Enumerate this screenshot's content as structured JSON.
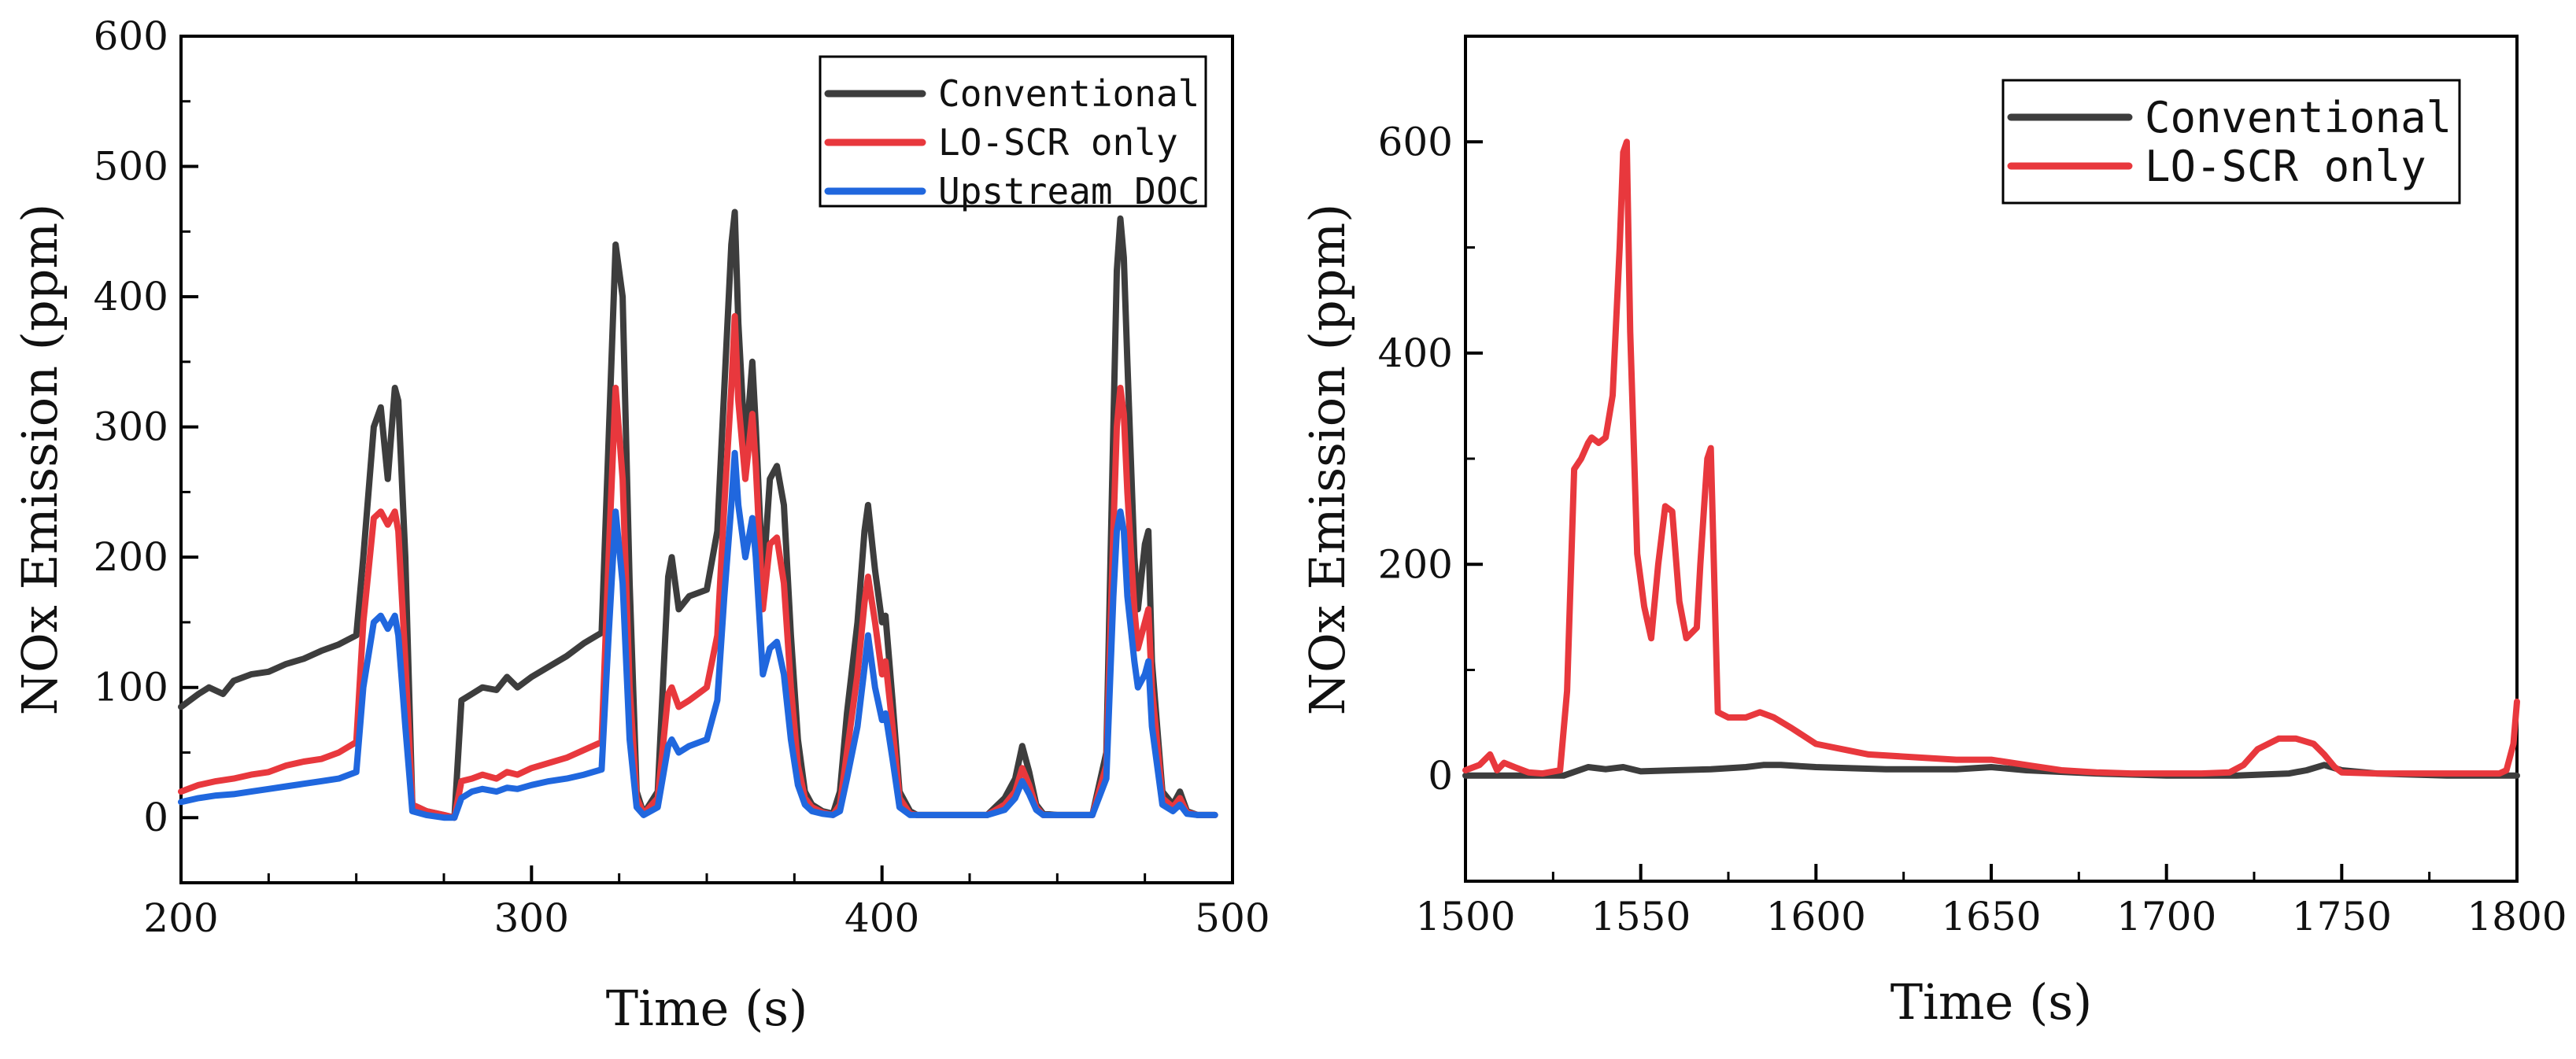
{
  "chart_data": [
    {
      "type": "line",
      "xlabel": "Time (s)",
      "ylabel": "NOx Emission (ppm)",
      "xlim": [
        200,
        500
      ],
      "ylim": [
        -50,
        600
      ],
      "xticks": [
        200,
        300,
        400,
        500
      ],
      "yticks": [
        0,
        100,
        200,
        300,
        400,
        500,
        600
      ],
      "legend_position": "top-right",
      "grid": false,
      "series": [
        {
          "name": "Conventional",
          "color": "#3d3d3d",
          "x": [
            200,
            205,
            208,
            212,
            215,
            220,
            225,
            230,
            235,
            240,
            245,
            250,
            252,
            255,
            257,
            259,
            261,
            262,
            264,
            266,
            270,
            275,
            278,
            280,
            283,
            286,
            290,
            293,
            296,
            300,
            305,
            310,
            315,
            320,
            322,
            324,
            326,
            328,
            330,
            332,
            336,
            339,
            340,
            342,
            345,
            350,
            353,
            355,
            357,
            358,
            359,
            361,
            363,
            364,
            366,
            368,
            370,
            372,
            374,
            376,
            378,
            380,
            383,
            386,
            388,
            390,
            393,
            395,
            396,
            398,
            400,
            401,
            403,
            405,
            408,
            410,
            415,
            420,
            425,
            430,
            435,
            438,
            440,
            442,
            444,
            446,
            450,
            455,
            460,
            464,
            466,
            467,
            468,
            469,
            470,
            472,
            473,
            475,
            476,
            477,
            480,
            483,
            485,
            487,
            490,
            495
          ],
          "y": [
            85,
            95,
            100,
            95,
            105,
            110,
            112,
            118,
            122,
            128,
            133,
            140,
            200,
            300,
            315,
            260,
            330,
            320,
            200,
            10,
            5,
            2,
            0,
            90,
            95,
            100,
            98,
            108,
            100,
            108,
            116,
            124,
            134,
            142,
            290,
            440,
            400,
            180,
            20,
            3,
            20,
            185,
            200,
            160,
            170,
            175,
            220,
            330,
            440,
            465,
            380,
            280,
            350,
            300,
            180,
            260,
            270,
            240,
            140,
            60,
            20,
            10,
            5,
            3,
            20,
            80,
            150,
            220,
            240,
            190,
            150,
            155,
            90,
            20,
            5,
            2,
            2,
            2,
            2,
            2,
            15,
            30,
            55,
            35,
            10,
            3,
            2,
            2,
            2,
            50,
            300,
            420,
            460,
            430,
            350,
            200,
            160,
            210,
            220,
            120,
            20,
            10,
            20,
            5,
            2,
            2
          ]
        },
        {
          "name": "LO-SCR only",
          "color": "#e8383d",
          "x": [
            200,
            205,
            210,
            215,
            220,
            225,
            230,
            235,
            240,
            245,
            250,
            252,
            255,
            257,
            259,
            261,
            262,
            264,
            266,
            270,
            275,
            278,
            280,
            283,
            286,
            290,
            293,
            296,
            300,
            305,
            310,
            315,
            320,
            322,
            324,
            326,
            328,
            330,
            332,
            336,
            339,
            340,
            342,
            345,
            350,
            353,
            355,
            357,
            358,
            359,
            361,
            363,
            364,
            366,
            368,
            370,
            372,
            374,
            376,
            378,
            380,
            383,
            386,
            388,
            390,
            393,
            395,
            396,
            398,
            400,
            401,
            403,
            405,
            408,
            410,
            415,
            420,
            425,
            430,
            435,
            438,
            440,
            442,
            444,
            446,
            450,
            455,
            460,
            464,
            466,
            467,
            468,
            469,
            470,
            472,
            473,
            475,
            476,
            477,
            480,
            483,
            485,
            487,
            490,
            495
          ],
          "y": [
            20,
            25,
            28,
            30,
            33,
            35,
            40,
            43,
            45,
            50,
            58,
            150,
            230,
            235,
            225,
            235,
            220,
            120,
            10,
            5,
            2,
            0,
            28,
            30,
            33,
            30,
            35,
            33,
            38,
            42,
            46,
            52,
            58,
            200,
            330,
            260,
            100,
            15,
            3,
            15,
            95,
            100,
            85,
            90,
            100,
            140,
            240,
            330,
            385,
            320,
            260,
            310,
            270,
            160,
            210,
            215,
            180,
            100,
            40,
            15,
            8,
            4,
            2,
            10,
            50,
            110,
            165,
            185,
            150,
            110,
            120,
            70,
            15,
            3,
            2,
            2,
            2,
            2,
            2,
            10,
            20,
            38,
            25,
            8,
            2,
            2,
            2,
            2,
            40,
            220,
            300,
            330,
            310,
            250,
            160,
            130,
            150,
            160,
            100,
            15,
            8,
            15,
            4,
            2,
            2
          ]
        },
        {
          "name": "Upstream DOC",
          "color": "#2067de",
          "x": [
            200,
            205,
            210,
            215,
            220,
            225,
            230,
            235,
            240,
            245,
            250,
            252,
            255,
            257,
            259,
            261,
            262,
            264,
            266,
            270,
            275,
            278,
            280,
            283,
            286,
            290,
            293,
            296,
            300,
            305,
            310,
            315,
            320,
            322,
            324,
            326,
            328,
            330,
            332,
            336,
            339,
            340,
            342,
            345,
            350,
            353,
            355,
            357,
            358,
            359,
            361,
            363,
            364,
            366,
            368,
            370,
            372,
            374,
            376,
            378,
            380,
            383,
            386,
            388,
            390,
            393,
            395,
            396,
            398,
            400,
            401,
            403,
            405,
            408,
            410,
            415,
            420,
            425,
            430,
            435,
            438,
            440,
            442,
            444,
            446,
            450,
            455,
            460,
            464,
            466,
            467,
            468,
            469,
            470,
            472,
            473,
            475,
            476,
            477,
            480,
            483,
            485,
            487,
            490,
            495
          ],
          "y": [
            12,
            15,
            17,
            18,
            20,
            22,
            24,
            26,
            28,
            30,
            35,
            100,
            150,
            155,
            145,
            155,
            140,
            70,
            5,
            2,
            0,
            0,
            15,
            20,
            22,
            20,
            23,
            22,
            25,
            28,
            30,
            33,
            37,
            140,
            235,
            180,
            60,
            8,
            2,
            8,
            55,
            60,
            50,
            55,
            60,
            90,
            170,
            240,
            280,
            240,
            200,
            230,
            200,
            110,
            130,
            135,
            110,
            60,
            25,
            10,
            5,
            3,
            2,
            5,
            30,
            70,
            115,
            140,
            100,
            75,
            80,
            45,
            8,
            2,
            2,
            2,
            2,
            2,
            2,
            6,
            15,
            28,
            18,
            6,
            2,
            2,
            2,
            2,
            30,
            170,
            220,
            235,
            220,
            170,
            120,
            100,
            110,
            120,
            70,
            10,
            5,
            10,
            3,
            2,
            2
          ]
        }
      ]
    },
    {
      "type": "line",
      "xlabel": "Time (s)",
      "ylabel": "NOx Emission (ppm)",
      "xlim": [
        1500,
        1800
      ],
      "ylim": [
        -100,
        700
      ],
      "xticks": [
        1500,
        1550,
        1600,
        1650,
        1700,
        1750,
        1800
      ],
      "yticks": [
        0,
        200,
        400,
        600
      ],
      "legend_position": "top-right",
      "grid": false,
      "series": [
        {
          "name": "Conventional",
          "color": "#3d3d3d",
          "x": [
            1500,
            1510,
            1520,
            1528,
            1535,
            1540,
            1545,
            1550,
            1560,
            1570,
            1580,
            1585,
            1590,
            1600,
            1620,
            1640,
            1650,
            1660,
            1680,
            1700,
            1720,
            1735,
            1740,
            1745,
            1750,
            1760,
            1780,
            1795,
            1800
          ],
          "y": [
            0,
            0,
            0,
            0,
            8,
            6,
            8,
            4,
            5,
            6,
            8,
            10,
            10,
            8,
            6,
            6,
            8,
            5,
            2,
            0,
            0,
            2,
            5,
            10,
            5,
            2,
            0,
            0,
            0
          ]
        },
        {
          "name": "LO-SCR only",
          "color": "#e8383d",
          "x": [
            1500,
            1504,
            1507,
            1509,
            1511,
            1514,
            1518,
            1522,
            1527,
            1529,
            1531,
            1533,
            1535,
            1536,
            1538,
            1540,
            1542,
            1544,
            1545,
            1546,
            1547,
            1549,
            1551,
            1553,
            1555,
            1557,
            1559,
            1561,
            1563,
            1566,
            1567,
            1568,
            1569,
            1570,
            1572,
            1575,
            1580,
            1584,
            1588,
            1593,
            1600,
            1615,
            1625,
            1640,
            1650,
            1660,
            1670,
            1680,
            1690,
            1700,
            1710,
            1718,
            1722,
            1726,
            1732,
            1737,
            1742,
            1745,
            1748,
            1750,
            1760,
            1770,
            1780,
            1790,
            1795,
            1797,
            1799,
            1800
          ],
          "y": [
            5,
            10,
            20,
            5,
            12,
            8,
            3,
            2,
            5,
            80,
            290,
            300,
            315,
            320,
            315,
            320,
            360,
            500,
            590,
            600,
            420,
            210,
            160,
            130,
            200,
            255,
            250,
            165,
            130,
            140,
            200,
            250,
            300,
            310,
            60,
            55,
            55,
            60,
            55,
            45,
            30,
            20,
            18,
            15,
            15,
            10,
            5,
            3,
            2,
            2,
            2,
            3,
            10,
            25,
            35,
            35,
            30,
            20,
            8,
            3,
            2,
            2,
            2,
            2,
            2,
            5,
            30,
            70
          ]
        }
      ]
    }
  ]
}
